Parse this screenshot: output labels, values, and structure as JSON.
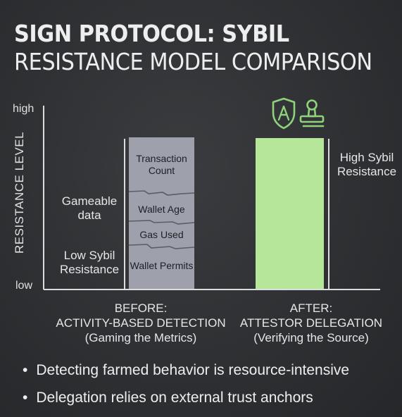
{
  "title": {
    "line1": "SIGN PROTOCOL: SYBIL",
    "line2": "RESISTANCE MODEL COMPARISON"
  },
  "chart_data": {
    "type": "bar",
    "ylabel": "RESISTANCE LEVEL",
    "y_ticks": [
      "high",
      "low"
    ],
    "categories": [
      [
        "BEFORE:",
        "ACTIVITY-BASED DETECTION",
        "(Gaming the Metrics)"
      ],
      [
        "AFTER:",
        "ATTESTOR DELEGATION",
        "(Verifying the Source)"
      ]
    ],
    "stacked_segments": [
      "Transaction Count",
      "Wallet Age",
      "Gas Used",
      "Wallet Permits"
    ],
    "annotations": {
      "before_upper": "Gameable data",
      "before_lower": "Low Sybil Resistance",
      "after": "High Sybil Resistance"
    },
    "grid": false,
    "colors": {
      "before_bar": "#9ea1ab",
      "after_bar": "#b5e69a",
      "icons": "#8fd27a"
    },
    "icons": [
      "shield-icon",
      "stamp-icon"
    ]
  },
  "bullets": [
    "Detecting farmed behavior is resource-intensive",
    "Delegation relies on external trust anchors"
  ]
}
